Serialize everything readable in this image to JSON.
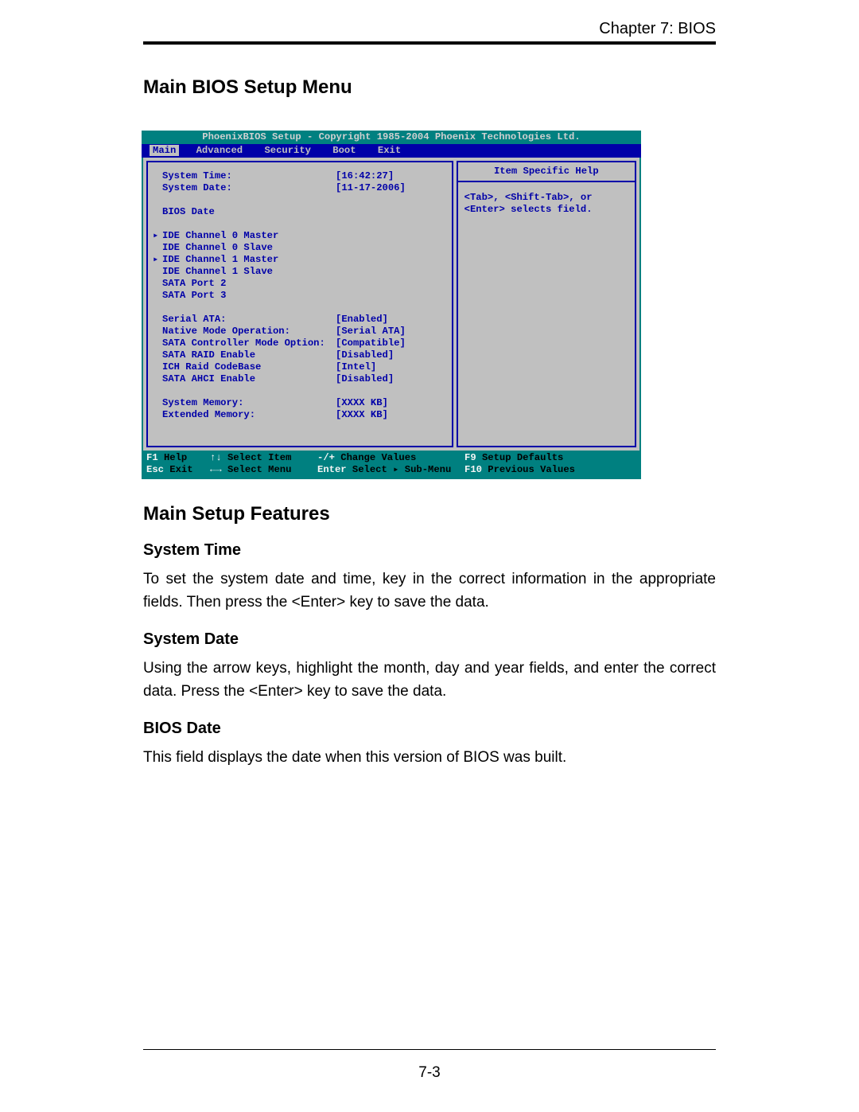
{
  "document": {
    "chapter_header": "Chapter 7: BIOS",
    "page_number": "7-3",
    "heading_main": "Main BIOS Setup Menu",
    "heading_features": "Main Setup Features",
    "sections": {
      "system_time": {
        "heading": "System Time",
        "text": "To set the system date and time, key in the correct information in the appropriate fields.  Then press the <Enter> key to save the data."
      },
      "system_date": {
        "heading": "System Date",
        "text": "Using the arrow keys, highlight the month, day and year fields, and enter the correct data.  Press the <Enter> key to save the data."
      },
      "bios_date": {
        "heading": "BIOS Date",
        "text": "This field displays the date when this version of BIOS was built."
      }
    }
  },
  "bios": {
    "colors": {
      "teal": "#008080",
      "blue": "#0000a8",
      "grey": "#c0c0c0",
      "white": "#f5f5f5"
    },
    "title": "PhoenixBIOS Setup - Copyright 1985-2004 Phoenix Technologies Ltd.",
    "menu": [
      "Main",
      "Advanced",
      "Security",
      "Boot",
      "Exit"
    ],
    "menu_active": "Main",
    "help_title": "Item Specific Help",
    "help_text": "<Tab>, <Shift-Tab>, or <Enter> selects field.",
    "rows": [
      {
        "indent": "plain",
        "label": "System Time:",
        "value": "[16:42:27]",
        "white": true
      },
      {
        "indent": "plain",
        "label": "System Date:",
        "value": "[11-17-2006]"
      },
      {
        "gap": true
      },
      {
        "indent": "plain",
        "label": "BIOS Date",
        "value": ""
      },
      {
        "gap": true
      },
      {
        "indent": "arrow",
        "label": "IDE Channel 0 Master",
        "value": ""
      },
      {
        "indent": "plain",
        "label": "IDE Channel 0 Slave",
        "value": ""
      },
      {
        "indent": "arrow",
        "label": "IDE Channel 1 Master",
        "value": ""
      },
      {
        "indent": "plain",
        "label": "IDE Channel 1 Slave",
        "value": ""
      },
      {
        "indent": "plain",
        "label": "SATA Port 2",
        "value": ""
      },
      {
        "indent": "plain",
        "label": "SATA Port 3",
        "value": ""
      },
      {
        "gap": true
      },
      {
        "indent": "plain",
        "label": "Serial ATA:",
        "value": "[Enabled]"
      },
      {
        "indent": "plain",
        "label": "Native Mode Operation:",
        "value": "[Serial ATA]"
      },
      {
        "indent": "plain",
        "label": "SATA Controller Mode Option:",
        "value": "[Compatible]"
      },
      {
        "indent": "plain",
        "label": "SATA RAID Enable",
        "value": "[Disabled]"
      },
      {
        "indent": "plain",
        "label": "ICH Raid CodeBase",
        "value": "[Intel]"
      },
      {
        "indent": "plain",
        "label": "SATA AHCI Enable",
        "value": "[Disabled]"
      },
      {
        "gap": true
      },
      {
        "indent": "plain",
        "label": "System Memory:",
        "value": "[XXXX KB]"
      },
      {
        "indent": "plain",
        "label": "Extended Memory:",
        "value": "[XXXX KB]"
      }
    ],
    "footer": {
      "row1": {
        "c1k": "F1",
        "c1t": "Help",
        "c2k": "↑↓",
        "c2t": "Select Item",
        "c3k": "-/+",
        "c3t": "Change Values",
        "c4k": "F9",
        "c4t": "Setup Defaults"
      },
      "row2": {
        "c1k": "Esc",
        "c1t": "Exit",
        "c2k": "←→",
        "c2t": "Select Menu",
        "c3k": "Enter",
        "c3t": "Select ▸ Sub-Menu",
        "c4k": "F10",
        "c4t": "Previous Values"
      }
    }
  }
}
